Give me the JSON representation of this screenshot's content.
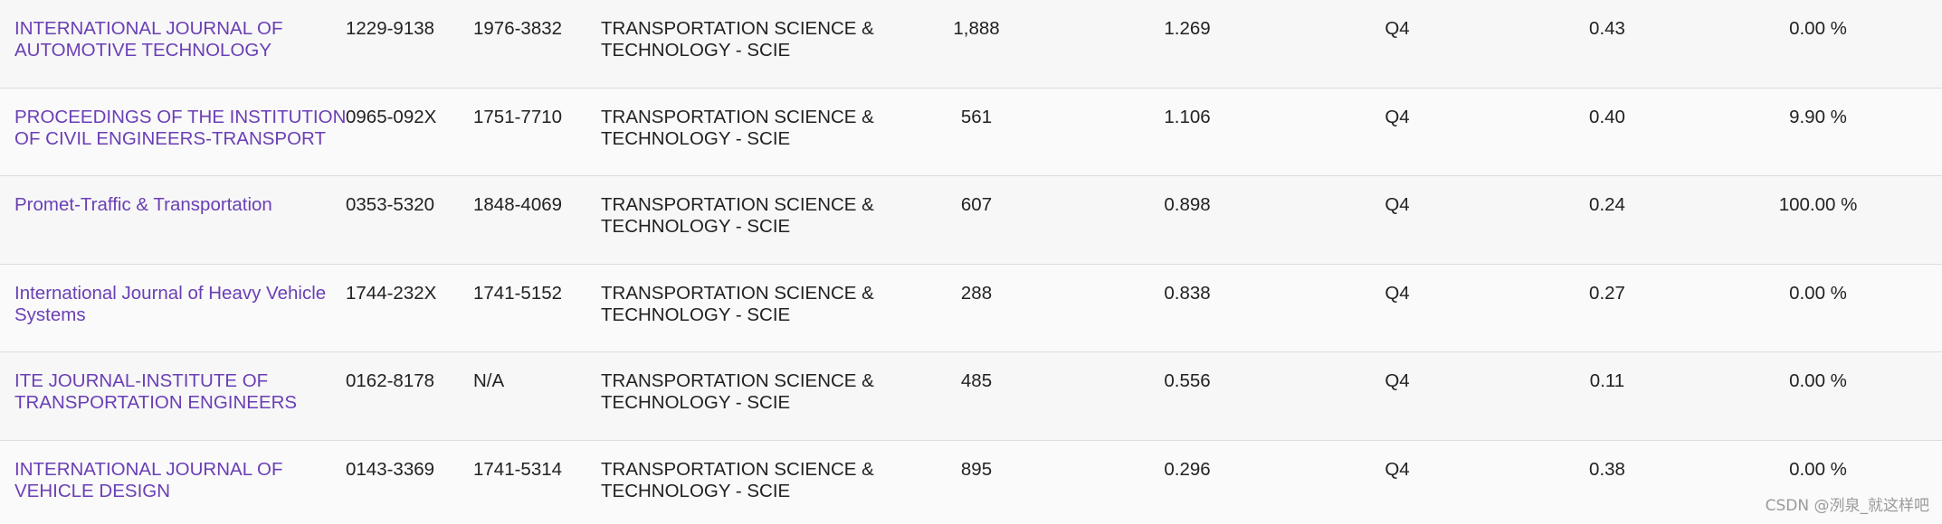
{
  "rows": [
    {
      "journal": "INTERNATIONAL JOURNAL OF AUTOMOTIVE TECHNOLOGY",
      "issn": "1229-9138",
      "eissn": "1976-3832",
      "category": "TRANSPORTATION SCIENCE & TECHNOLOGY - SCIE",
      "total_cites": "1,888",
      "jif": "1.269",
      "quartile": "Q4",
      "jci": "0.43",
      "oa_pct": "0.00 %"
    },
    {
      "journal": "PROCEEDINGS OF THE INSTITUTION OF CIVIL ENGINEERS-TRANSPORT",
      "issn": "0965-092X",
      "eissn": "1751-7710",
      "category": "TRANSPORTATION SCIENCE & TECHNOLOGY - SCIE",
      "total_cites": "561",
      "jif": "1.106",
      "quartile": "Q4",
      "jci": "0.40",
      "oa_pct": "9.90 %"
    },
    {
      "journal": "Promet-Traffic & Transportation",
      "issn": "0353-5320",
      "eissn": "1848-4069",
      "category": "TRANSPORTATION SCIENCE & TECHNOLOGY - SCIE",
      "total_cites": "607",
      "jif": "0.898",
      "quartile": "Q4",
      "jci": "0.24",
      "oa_pct": "100.00 %"
    },
    {
      "journal": "International Journal of Heavy Vehicle Systems",
      "issn": "1744-232X",
      "eissn": "1741-5152",
      "category": "TRANSPORTATION SCIENCE & TECHNOLOGY - SCIE",
      "total_cites": "288",
      "jif": "0.838",
      "quartile": "Q4",
      "jci": "0.27",
      "oa_pct": "0.00 %"
    },
    {
      "journal": "ITE JOURNAL-INSTITUTE OF TRANSPORTATION ENGINEERS",
      "issn": "0162-8178",
      "eissn": "N/A",
      "category": "TRANSPORTATION SCIENCE & TECHNOLOGY - SCIE",
      "total_cites": "485",
      "jif": "0.556",
      "quartile": "Q4",
      "jci": "0.11",
      "oa_pct": "0.00 %"
    },
    {
      "journal": "INTERNATIONAL JOURNAL OF VEHICLE DESIGN",
      "issn": "0143-3369",
      "eissn": "1741-5314",
      "category": "TRANSPORTATION SCIENCE & TECHNOLOGY - SCIE",
      "total_cites": "895",
      "jif": "0.296",
      "quartile": "Q4",
      "jci": "0.38",
      "oa_pct": "0.00 %"
    }
  ],
  "watermark": "CSDN @洌泉_就这样吧",
  "colors": {
    "link": "#6a3fb5",
    "text": "#222222",
    "divider": "#dcdcdc",
    "background": "#f7f7f7"
  }
}
